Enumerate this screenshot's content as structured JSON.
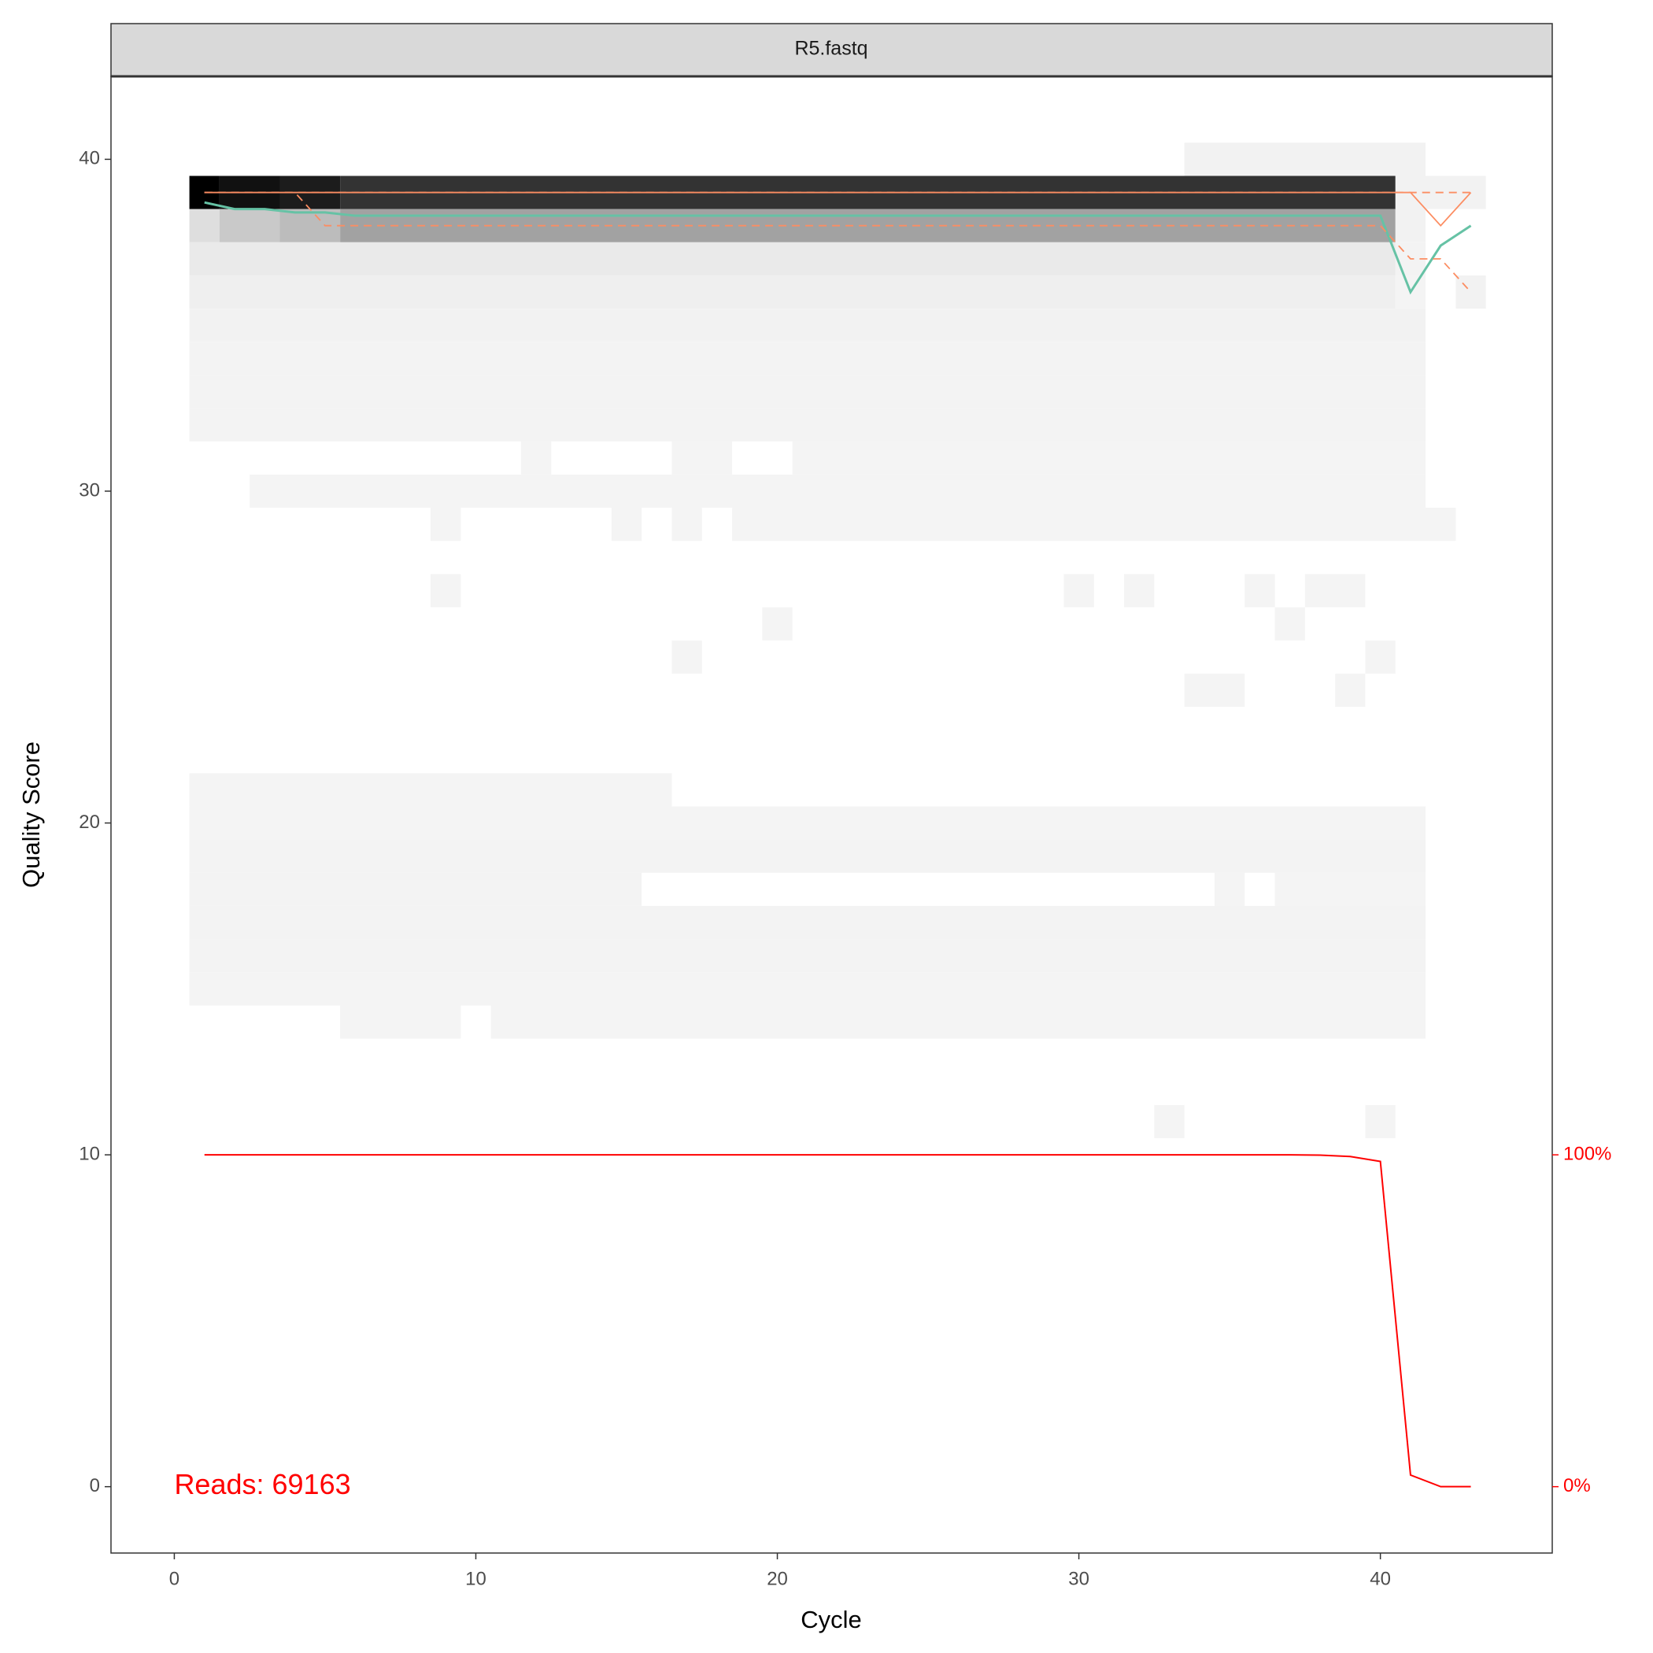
{
  "chart_data": {
    "type": "quality-profile",
    "title": "R5.fastq",
    "x_label": "Cycle",
    "y_label": "Quality Score",
    "annotation": "Reads:  69163",
    "annotation_color": "#ff0000",
    "xlim": [
      -2.1,
      45.7
    ],
    "ylim": [
      -2,
      42.5
    ],
    "y2lim": [
      -20,
      425
    ],
    "xticks": [
      0,
      10,
      20,
      30,
      40
    ],
    "yticks": [
      0,
      10,
      20,
      30,
      40
    ],
    "y2ticks": [
      {
        "value": 0,
        "label": "0%"
      },
      {
        "value": 100,
        "label": "100%"
      }
    ],
    "y2_color": "#ff0000",
    "x": [
      1,
      2,
      3,
      4,
      5,
      6,
      7,
      8,
      9,
      10,
      11,
      12,
      13,
      14,
      15,
      16,
      17,
      18,
      19,
      20,
      21,
      22,
      23,
      24,
      25,
      26,
      27,
      28,
      29,
      30,
      31,
      32,
      33,
      34,
      35,
      36,
      37,
      38,
      39,
      40,
      41,
      42,
      43
    ],
    "series": [
      {
        "color": "#66c2a5",
        "dash": false,
        "values": [
          38.7,
          38.5,
          38.5,
          38.4,
          38.4,
          38.3,
          38.3,
          38.3,
          38.3,
          38.3,
          38.3,
          38.3,
          38.3,
          38.3,
          38.3,
          38.3,
          38.3,
          38.3,
          38.3,
          38.3,
          38.3,
          38.3,
          38.3,
          38.3,
          38.3,
          38.3,
          38.3,
          38.3,
          38.3,
          38.3,
          38.3,
          38.3,
          38.3,
          38.3,
          38.3,
          38.3,
          38.3,
          38.3,
          38.3,
          38.3,
          36.0,
          37.4,
          38.0
        ]
      },
      {
        "color": "#fc8d62",
        "dash": false,
        "values": [
          39,
          39,
          39,
          39,
          39,
          39,
          39,
          39,
          39,
          39,
          39,
          39,
          39,
          39,
          39,
          39,
          39,
          39,
          39,
          39,
          39,
          39,
          39,
          39,
          39,
          39,
          39,
          39,
          39,
          39,
          39,
          39,
          39,
          39,
          39,
          39,
          39,
          39,
          39,
          39,
          39,
          38,
          39
        ]
      },
      {
        "color": "#fc8d62",
        "dash": true,
        "values": [
          39,
          39,
          39,
          39,
          38,
          38,
          38,
          38,
          38,
          38,
          38,
          38,
          38,
          38,
          38,
          38,
          38,
          38,
          38,
          38,
          38,
          38,
          38,
          38,
          38,
          38,
          38,
          38,
          38,
          38,
          38,
          38,
          38,
          38,
          38,
          38,
          38,
          38,
          38,
          38,
          37,
          37,
          36
        ]
      },
      {
        "color": "#fc8d62",
        "dash": true,
        "values": [
          39,
          39,
          39,
          39,
          39,
          39,
          39,
          39,
          39,
          39,
          39,
          39,
          39,
          39,
          39,
          39,
          39,
          39,
          39,
          39,
          39,
          39,
          39,
          39,
          39,
          39,
          39,
          39,
          39,
          39,
          39,
          39,
          39,
          39,
          39,
          39,
          39,
          39,
          39,
          39,
          39,
          39,
          39
        ]
      },
      {
        "color": "#ff0000",
        "dash": false,
        "axis": "y2",
        "values": [
          100,
          100,
          100,
          100,
          100,
          100,
          100,
          100,
          100,
          100,
          100,
          100,
          100,
          100,
          100,
          100,
          100,
          100,
          100,
          100,
          100,
          100,
          100,
          100,
          100,
          100,
          100,
          100,
          100,
          100,
          100,
          100,
          100,
          100,
          100,
          100,
          100,
          99.9,
          99.5,
          98,
          3.5,
          0,
          0
        ]
      }
    ],
    "tiles": [
      {
        "y": 40,
        "x": [
          34,
          41
        ],
        "fill": "#f2f2f2"
      },
      {
        "y": 39,
        "x": [
          1,
          1
        ],
        "fill": "#000000"
      },
      {
        "y": 39,
        "x": [
          2,
          3
        ],
        "fill": "#111111"
      },
      {
        "y": 39,
        "x": [
          4,
          5
        ],
        "fill": "#1c1c1c"
      },
      {
        "y": 39,
        "x": [
          6,
          40
        ],
        "fill": "#333333"
      },
      {
        "y": 39,
        "x": [
          41,
          43
        ],
        "fill": "#f2f2f2"
      },
      {
        "y": 38,
        "x": [
          1,
          1
        ],
        "fill": "#dedede"
      },
      {
        "y": 38,
        "x": [
          2,
          3
        ],
        "fill": "#c9c9c9"
      },
      {
        "y": 38,
        "x": [
          4,
          5
        ],
        "fill": "#bcbcbc"
      },
      {
        "y": 38,
        "x": [
          6,
          40
        ],
        "fill": "#a2a2a2"
      },
      {
        "y": 38,
        "x": [
          41,
          41
        ],
        "fill": "#f2f2f2"
      },
      {
        "y": 37,
        "x": [
          1,
          40
        ],
        "fill": "#eaeaea"
      },
      {
        "y": 37,
        "x": [
          41,
          41
        ],
        "fill": "#f3f3f3"
      },
      {
        "y": 36,
        "x": [
          1,
          40
        ],
        "fill": "#efefef"
      },
      {
        "y": 36,
        "x": [
          41,
          41
        ],
        "fill": "#f4f4f4"
      },
      {
        "y": 36,
        "x": [
          43,
          43
        ],
        "fill": "#f2f2f2"
      },
      {
        "y": 35,
        "x": [
          1,
          41
        ],
        "fill": "#f2f2f2"
      },
      {
        "y": 34,
        "x": [
          1,
          41
        ],
        "fill": "#f3f3f3"
      },
      {
        "y": 33,
        "x": [
          1,
          41
        ],
        "fill": "#f3f3f3"
      },
      {
        "y": 32,
        "x": [
          1,
          41
        ],
        "fill": "#f3f3f3"
      },
      {
        "y": 31,
        "x": [
          12,
          12
        ],
        "fill": "#f4f4f4"
      },
      {
        "y": 31,
        "x": [
          17,
          18
        ],
        "fill": "#f4f4f4"
      },
      {
        "y": 31,
        "x": [
          21,
          41
        ],
        "fill": "#f4f4f4"
      },
      {
        "y": 30,
        "x": [
          3,
          41
        ],
        "fill": "#f4f4f4"
      },
      {
        "y": 29,
        "x": [
          9,
          9
        ],
        "fill": "#f4f4f4"
      },
      {
        "y": 29,
        "x": [
          15,
          15
        ],
        "fill": "#f4f4f4"
      },
      {
        "y": 29,
        "x": [
          17,
          17
        ],
        "fill": "#f4f4f4"
      },
      {
        "y": 29,
        "x": [
          19,
          42
        ],
        "fill": "#f4f4f4"
      },
      {
        "y": 27,
        "x": [
          9,
          9
        ],
        "fill": "#f4f4f4"
      },
      {
        "y": 27,
        "x": [
          30,
          30
        ],
        "fill": "#f4f4f4"
      },
      {
        "y": 27,
        "x": [
          32,
          32
        ],
        "fill": "#f4f4f4"
      },
      {
        "y": 27,
        "x": [
          36,
          36
        ],
        "fill": "#f4f4f4"
      },
      {
        "y": 27,
        "x": [
          38,
          39
        ],
        "fill": "#f4f4f4"
      },
      {
        "y": 26,
        "x": [
          20,
          20
        ],
        "fill": "#f4f4f4"
      },
      {
        "y": 26,
        "x": [
          37,
          37
        ],
        "fill": "#f4f4f4"
      },
      {
        "y": 25,
        "x": [
          17,
          17
        ],
        "fill": "#f4f4f4"
      },
      {
        "y": 25,
        "x": [
          40,
          40
        ],
        "fill": "#f4f4f4"
      },
      {
        "y": 24,
        "x": [
          34,
          35
        ],
        "fill": "#f4f4f4"
      },
      {
        "y": 24,
        "x": [
          39,
          39
        ],
        "fill": "#f4f4f4"
      },
      {
        "y": 21,
        "x": [
          1,
          16
        ],
        "fill": "#f4f4f4"
      },
      {
        "y": 20,
        "x": [
          1,
          41
        ],
        "fill": "#f4f4f4"
      },
      {
        "y": 19,
        "x": [
          1,
          41
        ],
        "fill": "#f3f3f3"
      },
      {
        "y": 18,
        "x": [
          1,
          15
        ],
        "fill": "#f3f3f3"
      },
      {
        "y": 18,
        "x": [
          35,
          35
        ],
        "fill": "#f4f4f4"
      },
      {
        "y": 18,
        "x": [
          37,
          41
        ],
        "fill": "#f4f4f4"
      },
      {
        "y": 17,
        "x": [
          1,
          41
        ],
        "fill": "#f3f3f3"
      },
      {
        "y": 16,
        "x": [
          1,
          41
        ],
        "fill": "#f3f3f3"
      },
      {
        "y": 15,
        "x": [
          1,
          41
        ],
        "fill": "#f4f4f4"
      },
      {
        "y": 14,
        "x": [
          6,
          9
        ],
        "fill": "#f4f4f4"
      },
      {
        "y": 14,
        "x": [
          11,
          41
        ],
        "fill": "#f4f4f4"
      },
      {
        "y": 11,
        "x": [
          33,
          33
        ],
        "fill": "#f4f4f4"
      },
      {
        "y": 11,
        "x": [
          40,
          40
        ],
        "fill": "#f4f4f4"
      }
    ]
  }
}
